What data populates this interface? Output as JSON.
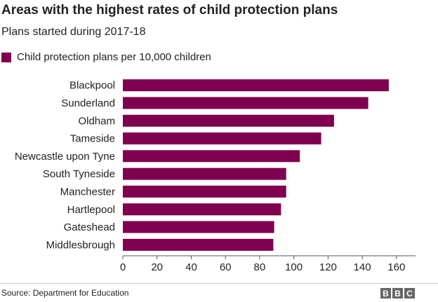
{
  "header": {
    "title": "Areas with the highest rates of child protection plans",
    "subtitle": "Plans started during 2017-18"
  },
  "footer": {
    "source": "Source: Department for Education",
    "logo_letters": [
      "B",
      "B",
      "C"
    ]
  },
  "colors": {
    "bar": "#800050",
    "text": "#222222",
    "axis": "#555555",
    "logo": "#666666"
  },
  "chart_data": {
    "type": "bar",
    "orientation": "horizontal",
    "title": "Areas with the highest rates of child protection plans",
    "subtitle": "Plans started during 2017-18",
    "categories": [
      "Blackpool",
      "Sunderland",
      "Oldham",
      "Tameside",
      "Newcastle upon Tyne",
      "South Tyneside",
      "Manchester",
      "Hartlepool",
      "Gateshead",
      "Middlesbrough"
    ],
    "series": [
      {
        "name": "Child protection plans per 10,000 children",
        "values": [
          155.5,
          143.5,
          123.5,
          116,
          103.5,
          95.5,
          95.5,
          92.5,
          88.5,
          88
        ]
      }
    ],
    "xlim": [
      0,
      165
    ],
    "xticks": [
      0,
      20,
      40,
      60,
      80,
      100,
      120,
      140,
      160
    ],
    "xlabel": "",
    "ylabel": "",
    "grid": false,
    "legend": "top-left"
  }
}
